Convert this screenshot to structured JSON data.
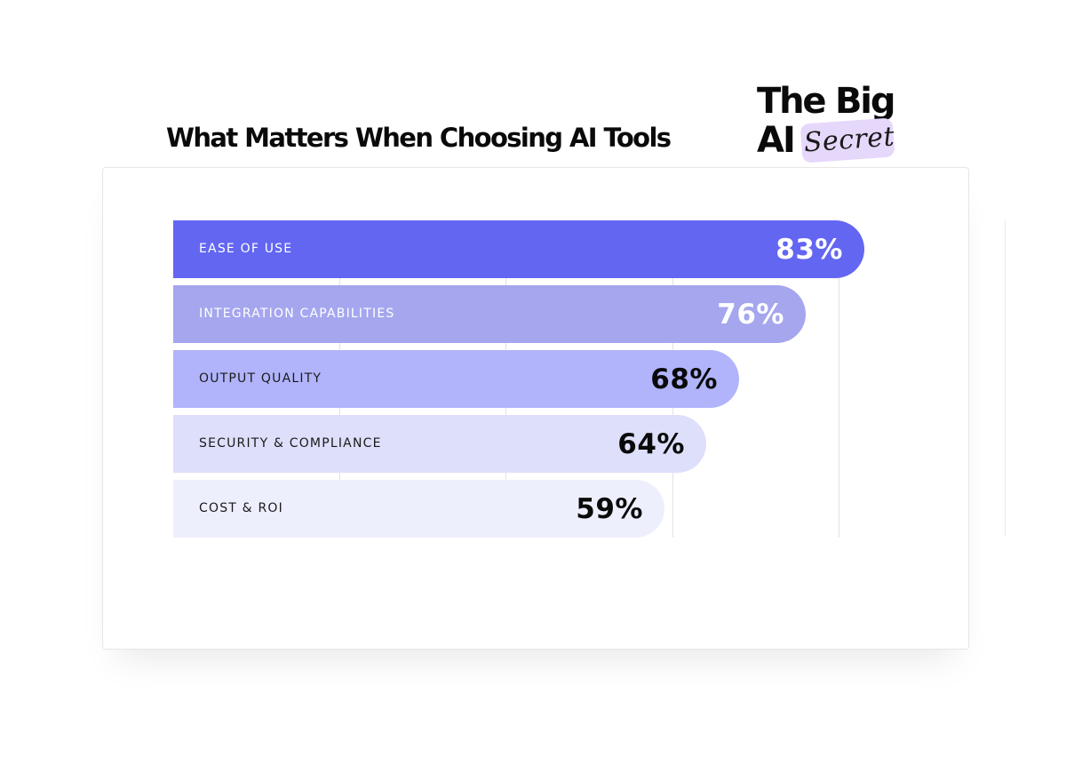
{
  "header": {
    "title": "What Matters When Choosing AI Tools"
  },
  "logo": {
    "line1": "The Big",
    "line2": "AI",
    "badge": "Secret",
    "badge_color": "#e6d8fb"
  },
  "chart_data": {
    "type": "bar",
    "orientation": "horizontal",
    "title": "What Matters When Choosing AI Tools",
    "categories": [
      "EASE OF USE",
      "INTEGRATION CAPABILITIES",
      "OUTPUT QUALITY",
      "SECURITY & COMPLIANCE",
      "COST & ROI"
    ],
    "values": [
      83,
      76,
      68,
      64,
      59
    ],
    "value_labels": [
      "83%",
      "76%",
      "68%",
      "64%",
      "59%"
    ],
    "unit": "%",
    "xlim": [
      0,
      100
    ],
    "gridlines": [
      20,
      40,
      60,
      80
    ],
    "grid": true,
    "legend": "none",
    "bar_colors": [
      "#6366f1",
      "#a5a6ee",
      "#b1b4fb",
      "#dedffa",
      "#eeeffd"
    ],
    "label_colors": [
      "#ffffff",
      "#ffffff",
      "#1a1a1a",
      "#1a1a1a",
      "#1a1a1a"
    ],
    "value_colors": [
      "#ffffff",
      "#ffffff",
      "#0a0a0a",
      "#0a0a0a",
      "#0a0a0a"
    ]
  }
}
